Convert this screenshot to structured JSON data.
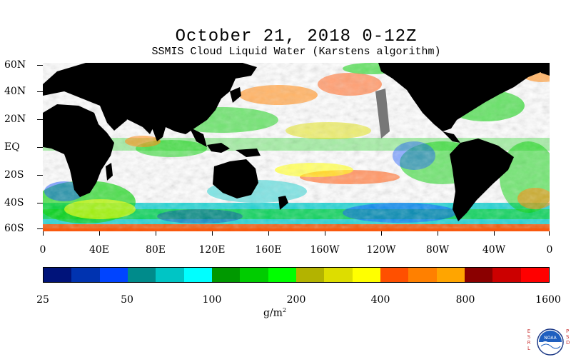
{
  "title": "October 21, 2018 0-12Z",
  "subtitle": "SSMIS Cloud Liquid Water (Karstens algorithm)",
  "lat_labels": [
    "60N",
    "40N",
    "20N",
    "EQ",
    "20S",
    "40S",
    "60S"
  ],
  "lon_labels": [
    "0",
    "40E",
    "80E",
    "120E",
    "160E",
    "160W",
    "120W",
    "80W",
    "40W",
    "0"
  ],
  "colorbar": {
    "colors": [
      "#00137a",
      "#0033b0",
      "#0044ff",
      "#008b8b",
      "#00c5c5",
      "#00ffff",
      "#009900",
      "#00cc00",
      "#00ff00",
      "#b3b300",
      "#dddd00",
      "#ffff00",
      "#ff5000",
      "#ff8000",
      "#ffa500",
      "#8b0000",
      "#cc0000",
      "#ff0000"
    ],
    "labels": [
      "25",
      "50",
      "100",
      "200",
      "400",
      "800",
      "1600"
    ],
    "units": "g/m",
    "units_exp": "2"
  },
  "logo": {
    "left_letters": "ESRL",
    "right_letters": "PSD",
    "emblem_text": "NOAA"
  },
  "map": {
    "land_color": "#000000",
    "no_data_color": "#777777",
    "ocean_background": "#ffffff"
  }
}
